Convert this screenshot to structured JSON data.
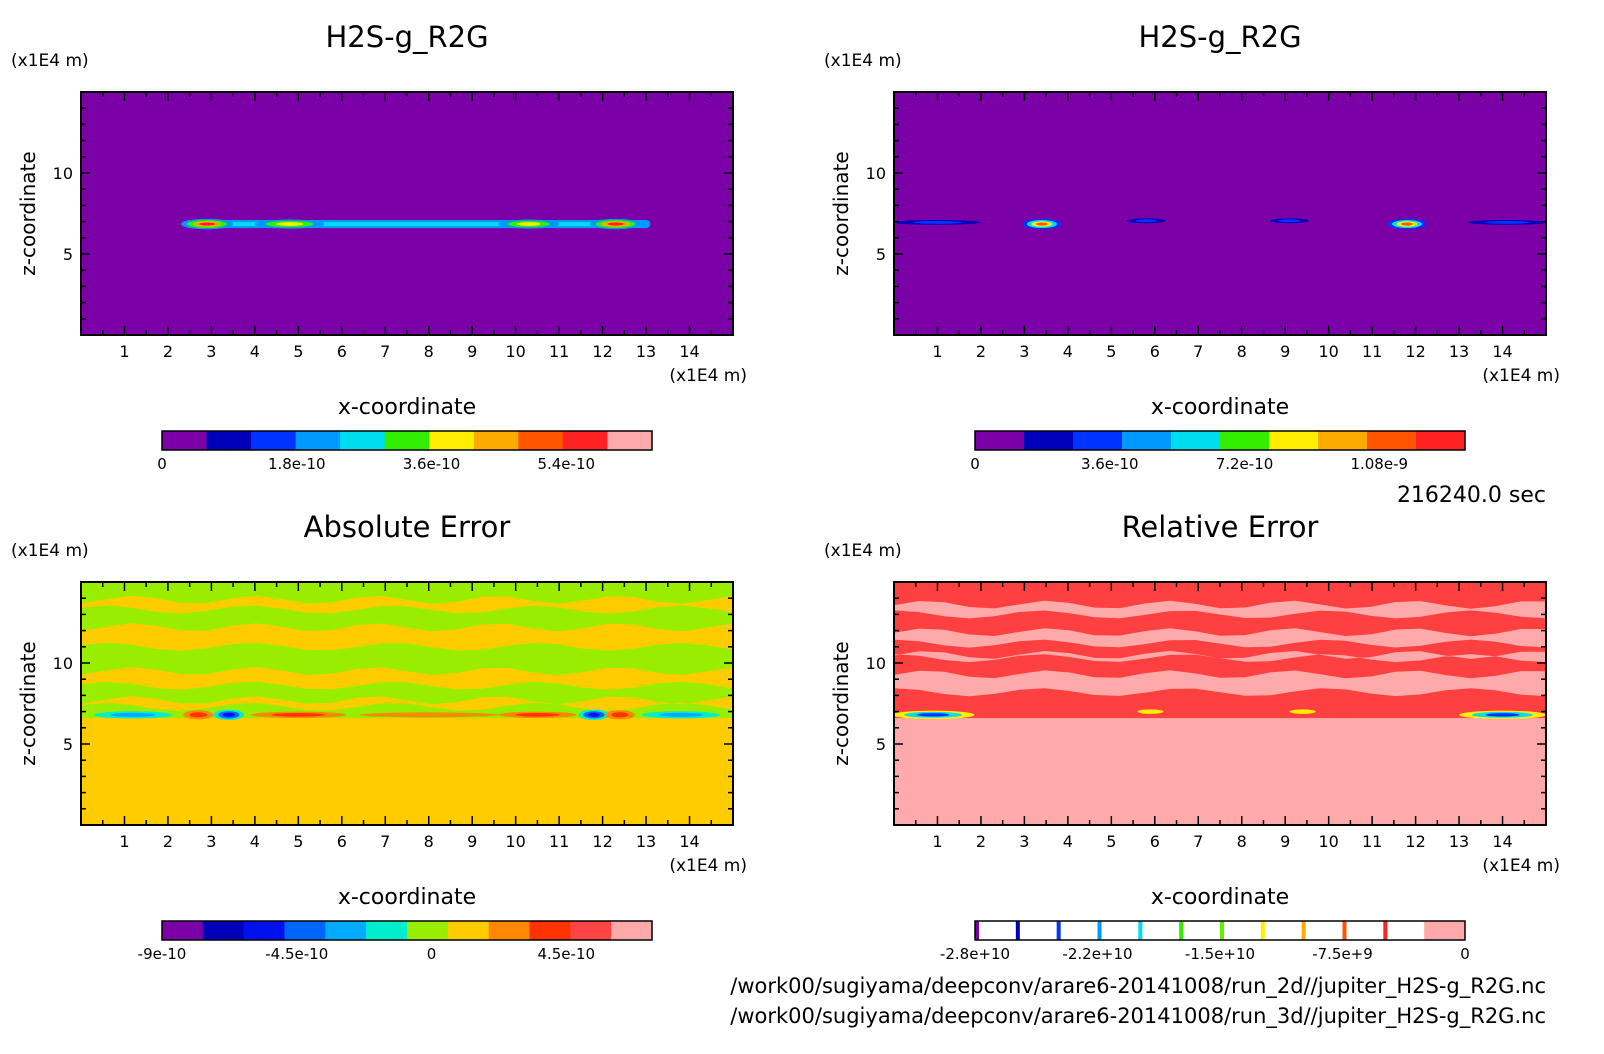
{
  "time_label": "216240.0 sec",
  "file_paths": [
    "/work00/sugiyama/deepconv/arare6-20141008/run_2d//jupiter_H2S-g_R2G.nc",
    "/work00/sugiyama/deepconv/arare6-20141008/run_3d//jupiter_H2S-g_R2G.nc"
  ],
  "chart_data": [
    {
      "type": "heatmap",
      "title": "H2S-g_R2G",
      "xlabel": "x-coordinate",
      "ylabel": "z-coordinate",
      "x_unit": "(x1E4 m)",
      "y_unit": "(x1E4 m)",
      "xlim": [
        0,
        15
      ],
      "ylim": [
        0,
        15
      ],
      "xticks": [
        "1",
        "2",
        "3",
        "4",
        "5",
        "6",
        "7",
        "8",
        "9",
        "10",
        "11",
        "12",
        "13",
        "14"
      ],
      "yticks": [
        "5",
        "10"
      ],
      "colorbar": {
        "levels": 11,
        "labels": [
          "0",
          "1.8e-10",
          "3.6e-10",
          "5.4e-10"
        ],
        "colors": [
          "#7b00a8",
          "#0000b8",
          "#0033ff",
          "#0099ff",
          "#00ddee",
          "#33ee00",
          "#ffee00",
          "#ffaa00",
          "#ff5500",
          "#ff2222",
          "#ffaaaa"
        ]
      },
      "background": "#7b00a8",
      "features": [
        {
          "kind": "band",
          "x0": 2.4,
          "x1": 13.1,
          "z": 6.85,
          "half_height": 0.25,
          "color": "#0099ff"
        },
        {
          "kind": "band",
          "x0": 2.6,
          "x1": 12.9,
          "z": 6.85,
          "half_height": 0.12,
          "color": "#00ddee"
        },
        {
          "kind": "blob",
          "x": 2.9,
          "z": 6.85,
          "rx": 0.6,
          "rz": 0.32,
          "levels": [
            "#0099ff",
            "#33ee00",
            "#ffaa00",
            "#ff2222"
          ]
        },
        {
          "kind": "blob",
          "x": 4.8,
          "z": 6.85,
          "rx": 0.8,
          "rz": 0.28,
          "levels": [
            "#0099ff",
            "#33ee00",
            "#ffee00"
          ]
        },
        {
          "kind": "blob",
          "x": 10.3,
          "z": 6.85,
          "rx": 0.7,
          "rz": 0.28,
          "levels": [
            "#0099ff",
            "#33ee00",
            "#ffee00"
          ]
        },
        {
          "kind": "blob",
          "x": 12.3,
          "z": 6.85,
          "rx": 0.6,
          "rz": 0.32,
          "levels": [
            "#0099ff",
            "#33ee00",
            "#ffaa00",
            "#ff2222"
          ]
        }
      ]
    },
    {
      "type": "heatmap",
      "title": "H2S-g_R2G",
      "xlabel": "x-coordinate",
      "ylabel": "z-coordinate",
      "x_unit": "(x1E4 m)",
      "y_unit": "(x1E4 m)",
      "xlim": [
        0,
        15
      ],
      "ylim": [
        0,
        15
      ],
      "xticks": [
        "1",
        "2",
        "3",
        "4",
        "5",
        "6",
        "7",
        "8",
        "9",
        "10",
        "11",
        "12",
        "13",
        "14"
      ],
      "yticks": [
        "5",
        "10"
      ],
      "colorbar": {
        "levels": 10,
        "labels": [
          "0",
          "3.6e-10",
          "7.2e-10",
          "1.08e-9"
        ],
        "colors": [
          "#7b00a8",
          "#0000b8",
          "#0033ff",
          "#0099ff",
          "#00ddee",
          "#33ee00",
          "#ffee00",
          "#ffaa00",
          "#ff5500",
          "#ff2222"
        ]
      },
      "background": "#7b00a8",
      "features": [
        {
          "kind": "blob",
          "x": 1.0,
          "z": 6.95,
          "rx": 1.0,
          "rz": 0.15,
          "levels": [
            "#0000b8",
            "#0033ff"
          ]
        },
        {
          "kind": "blob",
          "x": 3.4,
          "z": 6.85,
          "rx": 0.45,
          "rz": 0.32,
          "levels": [
            "#0033ff",
            "#00ddee",
            "#ffee00",
            "#ff5500"
          ]
        },
        {
          "kind": "blob",
          "x": 5.8,
          "z": 7.05,
          "rx": 0.45,
          "rz": 0.15,
          "levels": [
            "#0000b8",
            "#0033ff"
          ]
        },
        {
          "kind": "blob",
          "x": 9.1,
          "z": 7.05,
          "rx": 0.45,
          "rz": 0.15,
          "levels": [
            "#0000b8",
            "#0033ff"
          ]
        },
        {
          "kind": "blob",
          "x": 11.8,
          "z": 6.85,
          "rx": 0.45,
          "rz": 0.32,
          "levels": [
            "#0033ff",
            "#00ddee",
            "#ffee00",
            "#ff5500"
          ]
        },
        {
          "kind": "blob",
          "x": 14.1,
          "z": 6.95,
          "rx": 0.9,
          "rz": 0.15,
          "levels": [
            "#0000b8",
            "#0033ff"
          ]
        }
      ]
    },
    {
      "type": "heatmap",
      "title": "Absolute Error",
      "xlabel": "x-coordinate",
      "ylabel": "z-coordinate",
      "x_unit": "(x1E4 m)",
      "y_unit": "(x1E4 m)",
      "xlim": [
        0,
        15
      ],
      "ylim": [
        0,
        15
      ],
      "xticks": [
        "1",
        "2",
        "3",
        "4",
        "5",
        "6",
        "7",
        "8",
        "9",
        "10",
        "11",
        "12",
        "13",
        "14"
      ],
      "yticks": [
        "5",
        "10"
      ],
      "colorbar": {
        "levels": 12,
        "labels": [
          "-9e-10",
          "-4.5e-10",
          "0",
          "4.5e-10"
        ],
        "colors": [
          "#7b00a8",
          "#0000b8",
          "#0011ee",
          "#0066ff",
          "#00aaff",
          "#00eecc",
          "#99ee00",
          "#ffcc00",
          "#ff8800",
          "#ff3300",
          "#ff4444",
          "#ffaaaa"
        ]
      },
      "background": "#ffcc00",
      "features": [
        {
          "kind": "rect",
          "x0": 0,
          "x1": 15,
          "z0": 6.6,
          "z1": 15,
          "color": "#99ee00"
        },
        {
          "kind": "stripe",
          "x0": 0,
          "x1": 15,
          "z0": 13.3,
          "z1": 13.9,
          "color": "#ffcc00"
        },
        {
          "kind": "stripe",
          "x0": 0,
          "x1": 15,
          "z0": 11.0,
          "z1": 12.2,
          "color": "#ffcc00"
        },
        {
          "kind": "stripe",
          "x0": 0,
          "x1": 15,
          "z0": 8.6,
          "z1": 9.5,
          "color": "#ffcc00"
        },
        {
          "kind": "stripe",
          "x0": 0,
          "x1": 15,
          "z0": 7.3,
          "z1": 7.7,
          "color": "#ffcc00"
        },
        {
          "kind": "blob",
          "x": 1.2,
          "z": 6.8,
          "rx": 0.9,
          "rz": 0.22,
          "levels": [
            "#00eecc",
            "#00aaff"
          ]
        },
        {
          "kind": "blob",
          "x": 2.7,
          "z": 6.8,
          "rx": 0.35,
          "rz": 0.28,
          "levels": [
            "#ff8800",
            "#ff3300"
          ]
        },
        {
          "kind": "blob",
          "x": 3.4,
          "z": 6.8,
          "rx": 0.35,
          "rz": 0.32,
          "levels": [
            "#00eecc",
            "#0066ff",
            "#0011ee"
          ]
        },
        {
          "kind": "blob",
          "x": 5.0,
          "z": 6.8,
          "rx": 1.1,
          "rz": 0.2,
          "levels": [
            "#ff8800",
            "#ff3300"
          ]
        },
        {
          "kind": "blob",
          "x": 8.0,
          "z": 6.8,
          "rx": 1.6,
          "rz": 0.15,
          "levels": [
            "#ff8800"
          ]
        },
        {
          "kind": "blob",
          "x": 10.5,
          "z": 6.8,
          "rx": 0.9,
          "rz": 0.2,
          "levels": [
            "#ff8800",
            "#ff3300"
          ]
        },
        {
          "kind": "blob",
          "x": 11.8,
          "z": 6.8,
          "rx": 0.35,
          "rz": 0.32,
          "levels": [
            "#00eecc",
            "#0066ff",
            "#0011ee"
          ]
        },
        {
          "kind": "blob",
          "x": 12.4,
          "z": 6.8,
          "rx": 0.35,
          "rz": 0.28,
          "levels": [
            "#ff8800",
            "#ff3300"
          ]
        },
        {
          "kind": "blob",
          "x": 13.8,
          "z": 6.8,
          "rx": 0.9,
          "rz": 0.22,
          "levels": [
            "#00eecc",
            "#00aaff"
          ]
        }
      ]
    },
    {
      "type": "heatmap",
      "title": "Relative Error",
      "xlabel": "x-coordinate",
      "ylabel": "z-coordinate",
      "x_unit": "(x1E4 m)",
      "y_unit": "(x1E4 m)",
      "xlim": [
        0,
        15
      ],
      "ylim": [
        0,
        15
      ],
      "xticks": [
        "1",
        "2",
        "3",
        "4",
        "5",
        "6",
        "7",
        "8",
        "9",
        "10",
        "11",
        "12",
        "13",
        "14"
      ],
      "yticks": [
        "5",
        "10"
      ],
      "colorbar": {
        "levels": 12,
        "labels": [
          "-2.8e+10",
          "-2.2e+10",
          "-1.5e+10",
          "-7.5e+9",
          "0"
        ],
        "colors": [
          "#7b00a8",
          "#0000b8",
          "#0033ff",
          "#0099ff",
          "#00ddee",
          "#33ee00",
          "#66ee00",
          "#ffee00",
          "#ffaa00",
          "#ff5500",
          "#ff2222",
          "#ffaaaa"
        ]
      },
      "background": "#ffaaaa",
      "features": [
        {
          "kind": "rect",
          "x0": 0,
          "x1": 15,
          "z0": 6.6,
          "z1": 15,
          "color": "#ff4040"
        },
        {
          "kind": "stripe",
          "x0": 0,
          "x1": 15,
          "z0": 13.0,
          "z1": 13.6,
          "color": "#ffaaaa"
        },
        {
          "kind": "stripe",
          "x0": 0,
          "x1": 15,
          "z0": 11.2,
          "z1": 11.9,
          "color": "#ffaaaa"
        },
        {
          "kind": "stripe",
          "x0": 0,
          "x1": 15,
          "z0": 10.3,
          "z1": 10.5,
          "color": "#ffaaaa"
        },
        {
          "kind": "stripe",
          "x0": 0,
          "x1": 15,
          "z0": 8.2,
          "z1": 9.3,
          "color": "#ffaaaa"
        },
        {
          "kind": "blob",
          "x": 0.9,
          "z": 6.8,
          "rx": 0.95,
          "rz": 0.26,
          "levels": [
            "#ffee00",
            "#00ddee",
            "#0033ff"
          ]
        },
        {
          "kind": "blob",
          "x": 5.9,
          "z": 7.0,
          "rx": 0.3,
          "rz": 0.14,
          "levels": [
            "#ffee00"
          ]
        },
        {
          "kind": "blob",
          "x": 9.4,
          "z": 7.0,
          "rx": 0.3,
          "rz": 0.14,
          "levels": [
            "#ffee00"
          ]
        },
        {
          "kind": "blob",
          "x": 14.0,
          "z": 6.8,
          "rx": 1.0,
          "rz": 0.26,
          "levels": [
            "#ffee00",
            "#00ddee",
            "#0033ff"
          ]
        }
      ]
    }
  ]
}
